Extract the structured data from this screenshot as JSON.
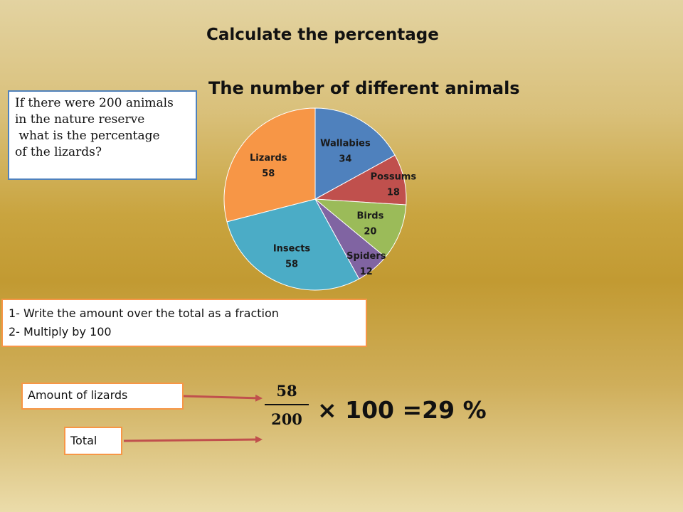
{
  "heading": "Calculate the percentage",
  "question_lines": [
    "If there were 200 animals",
    "in the nature reserve",
    " what is the percentage",
    "of the lizards?"
  ],
  "steps": [
    "1- Write the amount over the total as a fraction",
    "2- Multiply by 100"
  ],
  "amount_label": "Amount of lizards",
  "total_label": "Total",
  "fraction": {
    "numerator": "58",
    "denominator": "200"
  },
  "result": "× 100 =29 %",
  "colors": {
    "box_border_blue": "#4f81bd",
    "box_border_orange": "#f79646",
    "arrow": "#c0504d"
  },
  "chart_data": {
    "type": "pie",
    "title": "The number of different animals",
    "slices": [
      {
        "name": "Wallabies",
        "value": 34,
        "color": "#4f81bd"
      },
      {
        "name": "Possums",
        "value": 18,
        "color": "#c0504d"
      },
      {
        "name": "Birds",
        "value": 20,
        "color": "#9bbb59"
      },
      {
        "name": "Spiders",
        "value": 12,
        "color": "#8064a2"
      },
      {
        "name": "Insects",
        "value": 58,
        "color": "#4bacc6"
      },
      {
        "name": "Lizards",
        "value": 58,
        "color": "#f79646"
      }
    ],
    "labels_show": [
      "name",
      "value"
    ],
    "legend": "none"
  }
}
